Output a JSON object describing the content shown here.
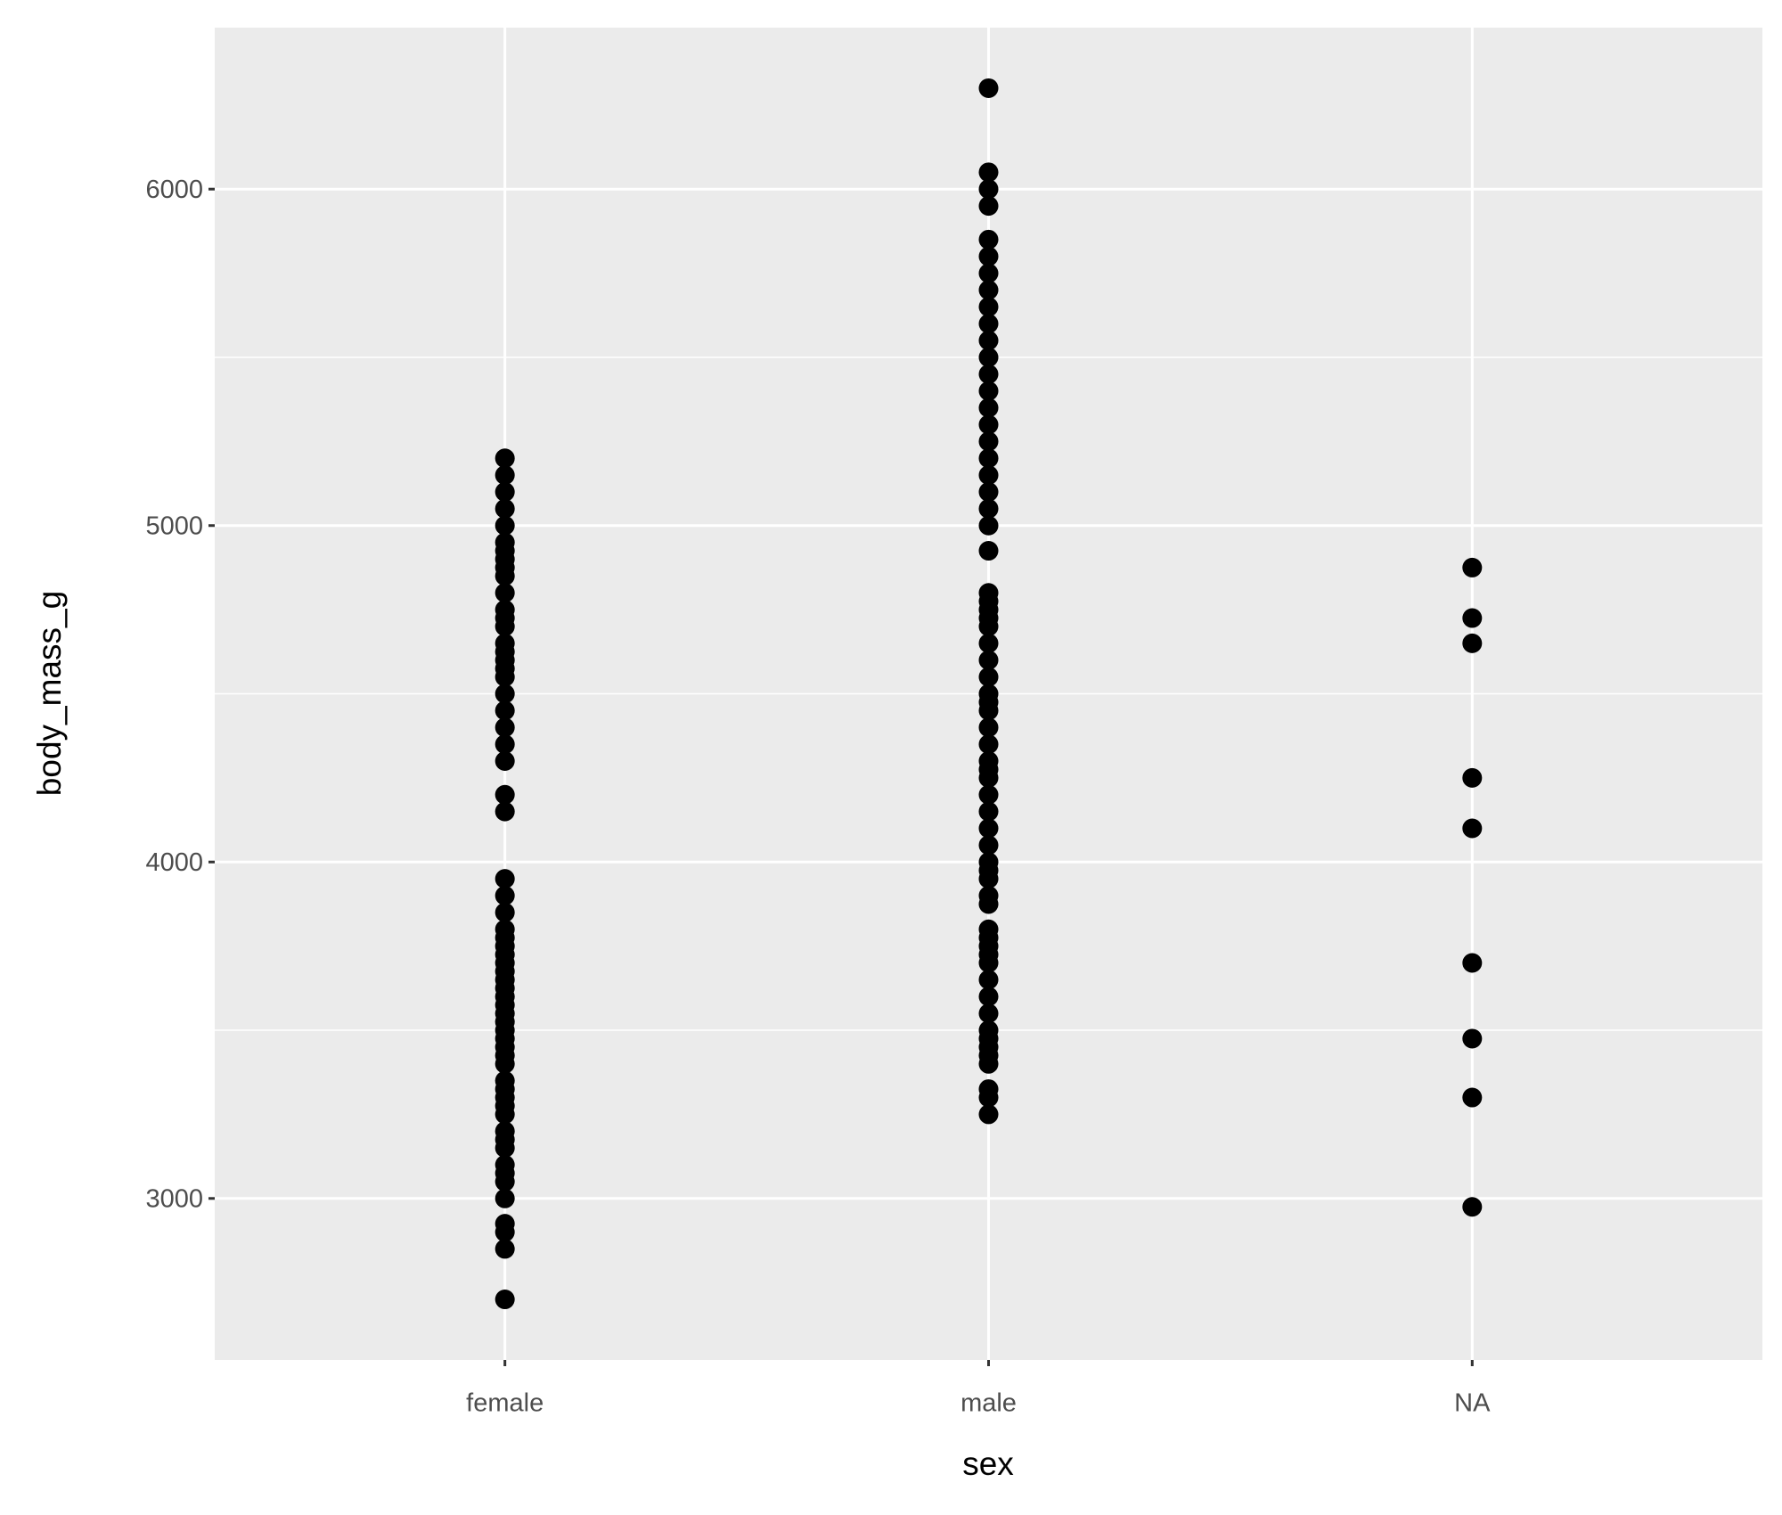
{
  "chart_data": {
    "type": "strip",
    "x_label": "sex",
    "y_label": "body_mass_g",
    "categories": [
      "female",
      "male",
      "NA"
    ],
    "values": [
      [
        2700,
        2850,
        2900,
        2925,
        3000,
        3050,
        3075,
        3100,
        3150,
        3175,
        3200,
        3250,
        3275,
        3300,
        3325,
        3350,
        3400,
        3425,
        3450,
        3475,
        3500,
        3525,
        3550,
        3575,
        3600,
        3625,
        3650,
        3675,
        3700,
        3725,
        3750,
        3775,
        3800,
        3850,
        3900,
        3950,
        4150,
        4200,
        4300,
        4350,
        4400,
        4450,
        4500,
        4550,
        4575,
        4600,
        4625,
        4650,
        4700,
        4725,
        4750,
        4800,
        4850,
        4875,
        4900,
        4925,
        4950,
        5000,
        5050,
        5100,
        5150,
        5200
      ],
      [
        3250,
        3300,
        3325,
        3400,
        3425,
        3450,
        3475,
        3500,
        3550,
        3600,
        3650,
        3700,
        3725,
        3750,
        3775,
        3800,
        3875,
        3900,
        3950,
        3975,
        4000,
        4050,
        4100,
        4150,
        4200,
        4250,
        4275,
        4300,
        4350,
        4400,
        4450,
        4475,
        4500,
        4550,
        4600,
        4650,
        4700,
        4725,
        4750,
        4775,
        4800,
        4925,
        5000,
        5050,
        5100,
        5150,
        5200,
        5250,
        5300,
        5350,
        5400,
        5450,
        5500,
        5550,
        5600,
        5650,
        5700,
        5750,
        5800,
        5850,
        5950,
        6000,
        6050,
        6300
      ],
      [
        4875,
        4725,
        4650,
        4250,
        4100,
        3700,
        3475,
        3300,
        2975
      ]
    ],
    "color": "#000000",
    "ylim": [
      2520,
      6480
    ],
    "yticks": [
      3000,
      4000,
      5000,
      6000
    ],
    "y_minor_grid": [
      3500,
      4500,
      5500
    ],
    "grid": true
  }
}
